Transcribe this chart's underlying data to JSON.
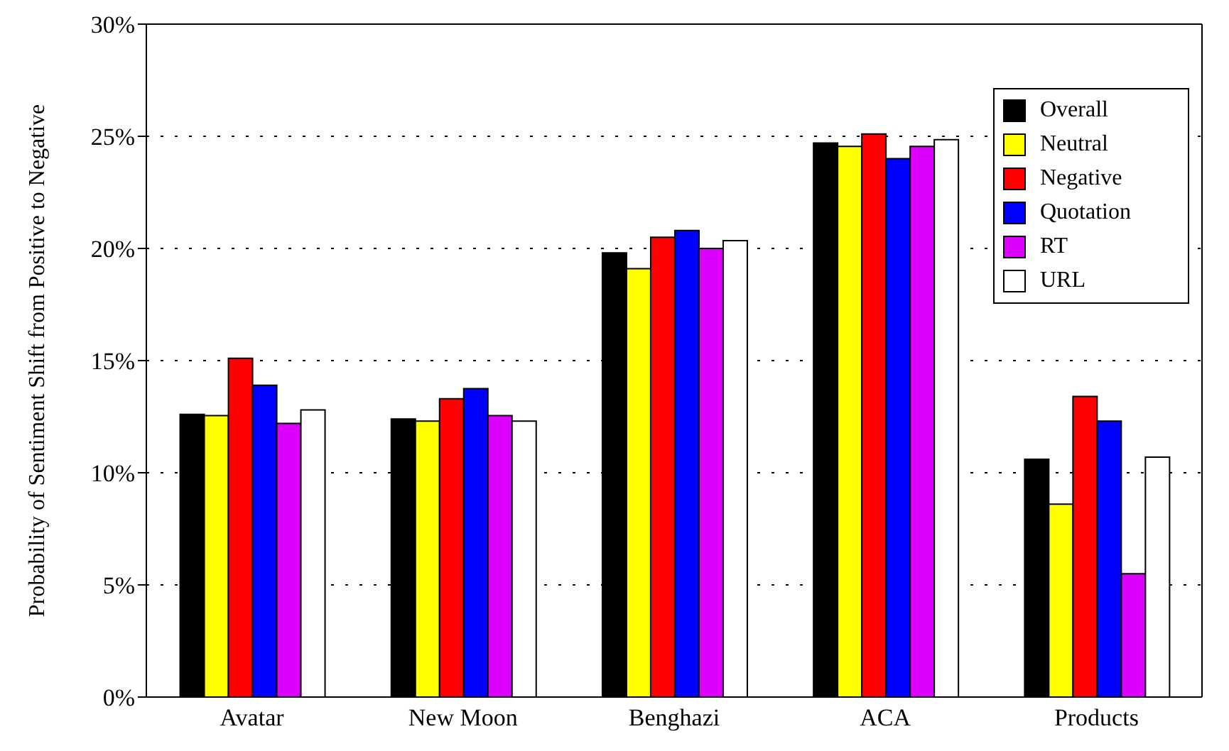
{
  "chart_data": {
    "type": "bar",
    "ylabel": "Probability of Sentiment Shift from Positive to Negative",
    "categories": [
      "Avatar",
      "New Moon",
      "Benghazi",
      "ACA",
      "Products"
    ],
    "series": [
      {
        "name": "Overall",
        "color": "#000000",
        "values": [
          12.6,
          12.4,
          19.8,
          24.7,
          10.6
        ]
      },
      {
        "name": "Neutral",
        "color": "#ffff00",
        "values": [
          12.55,
          12.3,
          19.1,
          24.55,
          8.6
        ]
      },
      {
        "name": "Negative",
        "color": "#ff0000",
        "values": [
          15.1,
          13.3,
          20.5,
          25.1,
          13.4
        ]
      },
      {
        "name": "Quotation",
        "color": "#0000ff",
        "values": [
          13.9,
          13.75,
          20.8,
          24.0,
          12.3
        ]
      },
      {
        "name": "RT",
        "color": "#dd00ff",
        "values": [
          12.2,
          12.55,
          20.0,
          24.55,
          5.5
        ]
      },
      {
        "name": "URL",
        "color": "#ffffff",
        "values": [
          12.8,
          12.3,
          20.35,
          24.85,
          10.7
        ]
      }
    ],
    "ylim": [
      0,
      30
    ],
    "yticks": [
      {
        "value": 0,
        "label": "0%"
      },
      {
        "value": 5,
        "label": "5%"
      },
      {
        "value": 10,
        "label": "10%"
      },
      {
        "value": 15,
        "label": "15%"
      },
      {
        "value": 20,
        "label": "20%"
      },
      {
        "value": 25,
        "label": "25%"
      },
      {
        "value": 30,
        "label": "30%"
      }
    ],
    "grid": "y",
    "legend": "top right"
  }
}
